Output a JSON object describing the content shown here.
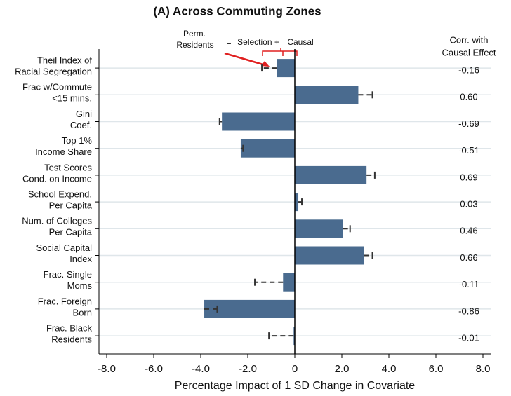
{
  "chart_data": {
    "type": "bar",
    "title": "(A)  Across Commuting Zones",
    "x_label": "Percentage Impact of 1 SD Change in Covariate",
    "categories": [
      [
        "Theil Index of",
        "Racial Segregation"
      ],
      [
        "Frac w/Commute",
        "<15 mins."
      ],
      [
        "Gini",
        "Coef."
      ],
      [
        "Top 1%",
        "Income Share"
      ],
      [
        "Test Scores",
        "Cond. on Income"
      ],
      [
        "School Expend.",
        "Per Capita"
      ],
      [
        "Num. of Colleges",
        "Per Capita"
      ],
      [
        "Social Capital",
        "Index"
      ],
      [
        "Frac. Single",
        "Moms"
      ],
      [
        "Frac. Foreign",
        "Born"
      ],
      [
        "Frac. Black",
        "Residents"
      ]
    ],
    "series": [
      {
        "name": "Causal",
        "color": "#4a6b8f",
        "values": [
          -0.75,
          2.7,
          -3.1,
          -2.3,
          3.05,
          0.15,
          2.05,
          2.95,
          -0.5,
          -3.85,
          -0.05
        ]
      },
      {
        "name": "Perm. Residents",
        "color": "#333333",
        "values": [
          -1.4,
          3.3,
          -3.2,
          -2.2,
          3.4,
          0.3,
          2.35,
          3.3,
          -1.7,
          -3.3,
          -1.1
        ]
      }
    ],
    "corr": {
      "title": [
        "Corr. with",
        "Causal Effect"
      ],
      "values": [
        -0.16,
        0.6,
        -0.69,
        -0.51,
        0.69,
        0.03,
        0.46,
        0.66,
        -0.11,
        -0.86,
        -0.01
      ],
      "value_labels": [
        "-0.16",
        "0.60",
        "-0.69",
        "-0.51",
        "0.69",
        "0.03",
        "0.46",
        "0.66",
        "-0.11",
        "-0.86",
        "-0.01"
      ]
    },
    "annotation": {
      "perm": [
        "Perm.",
        "Residents"
      ],
      "equals": "=",
      "selection": "Selection +",
      "causal": "Causal"
    },
    "xlim": [
      -8,
      8
    ],
    "xticks": [
      {
        "value": -8,
        "label": "-8.0"
      },
      {
        "value": -6,
        "label": "-6.0"
      },
      {
        "value": -4,
        "label": "-4.0"
      },
      {
        "value": -2,
        "label": "-2.0"
      },
      {
        "value": 0,
        "label": "0"
      },
      {
        "value": 2,
        "label": "2.0"
      },
      {
        "value": 4,
        "label": "4.0"
      },
      {
        "value": 6,
        "label": "6.0"
      },
      {
        "value": 8,
        "label": "8.0"
      }
    ],
    "grid": true
  }
}
